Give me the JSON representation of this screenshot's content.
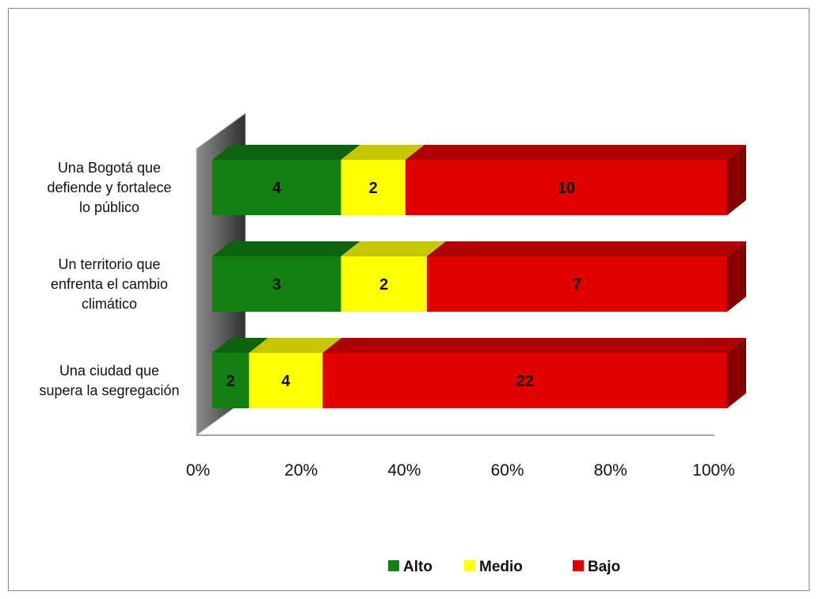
{
  "chart_data": {
    "type": "bar",
    "orientation": "horizontal",
    "stacked": "percent",
    "three_d": true,
    "categories": [
      [
        "Una Bogotá que",
        "defiende y fortalece",
        "lo público"
      ],
      [
        "Un territorio que",
        "enfrenta el cambio",
        "climático"
      ],
      [
        "Una ciudad que",
        "supera la segregación"
      ]
    ],
    "series": [
      {
        "name": "Alto",
        "color": "#128012",
        "values": [
          4,
          3,
          2
        ]
      },
      {
        "name": "Medio",
        "color": "#ffff00",
        "values": [
          2,
          2,
          4
        ]
      },
      {
        "name": "Bajo",
        "color": "#e00000",
        "values": [
          10,
          7,
          22
        ]
      }
    ],
    "x_ticks": [
      "0%",
      "20%",
      "40%",
      "60%",
      "80%",
      "100%"
    ],
    "xlim": [
      0,
      100
    ],
    "grid": false,
    "legend_position": "bottom"
  }
}
